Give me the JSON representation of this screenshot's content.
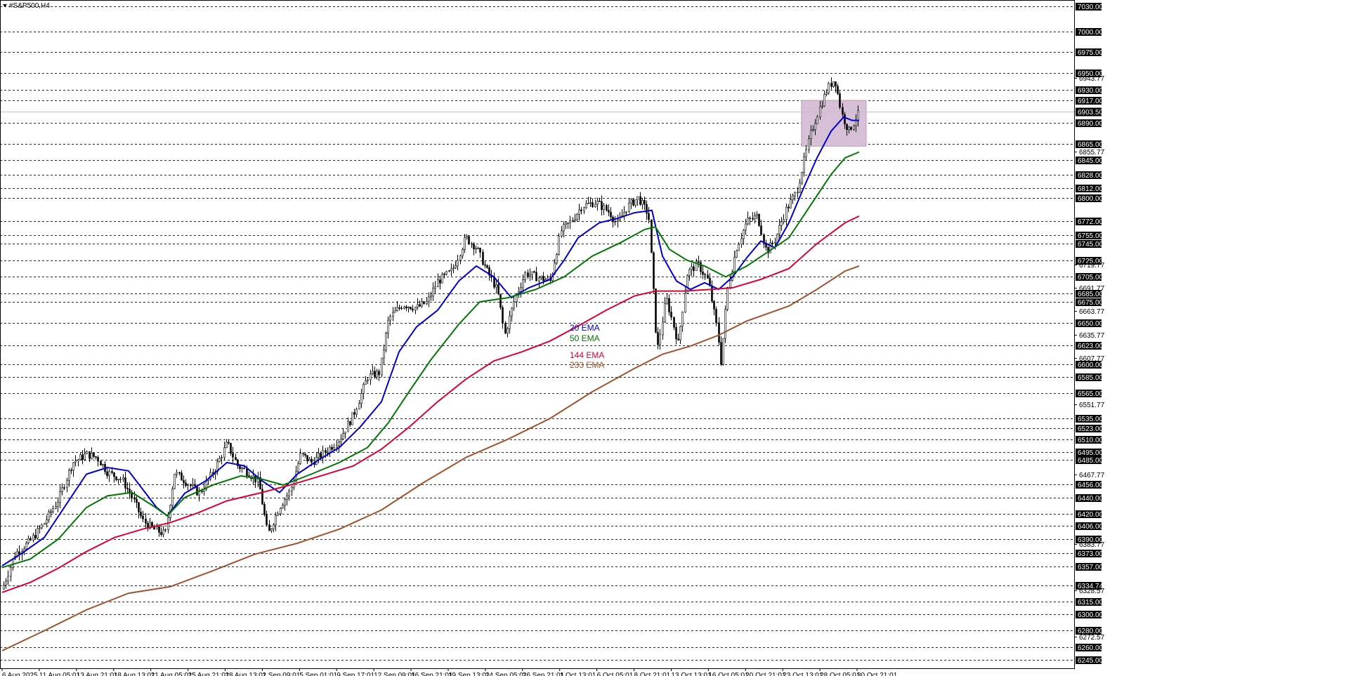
{
  "window": {
    "symbol_label": "#S&P500,H4",
    "dropdown_icon": "triangle-down-icon"
  },
  "chart_data": {
    "type": "line",
    "title": "#S&P500,H4",
    "xlabel": "",
    "ylabel": "",
    "ylim": [
      6245,
      7030
    ],
    "grid": false,
    "legend_placement": "center",
    "current_price": "6903.50",
    "price_levels": [
      {
        "value": 7030,
        "label": "7030.00"
      },
      {
        "value": 7000,
        "label": "7000.00"
      },
      {
        "value": 6975,
        "label": "6975.00"
      },
      {
        "value": 6950,
        "label": "6950.00"
      },
      {
        "value": 6930,
        "label": "6930.00"
      },
      {
        "value": 6917,
        "label": "6917.00"
      },
      {
        "value": 6890,
        "label": "6890.00"
      },
      {
        "value": 6865,
        "label": "6865.00"
      },
      {
        "value": 6845,
        "label": "6845.00"
      },
      {
        "value": 6828,
        "label": "6828.00"
      },
      {
        "value": 6812,
        "label": "6812.00"
      },
      {
        "value": 6800,
        "label": "6800.00"
      },
      {
        "value": 6772,
        "label": "6772.00"
      },
      {
        "value": 6755,
        "label": "6755.00"
      },
      {
        "value": 6745,
        "label": "6745.00"
      },
      {
        "value": 6725,
        "label": "6725.00"
      },
      {
        "value": 6705,
        "label": "6705.00"
      },
      {
        "value": 6685,
        "label": "6685.00"
      },
      {
        "value": 6675,
        "label": "6675.00"
      },
      {
        "value": 6650,
        "label": "6650.00"
      },
      {
        "value": 6623,
        "label": "6623.00"
      },
      {
        "value": 6600,
        "label": "6600.00"
      },
      {
        "value": 6585,
        "label": "6585.00"
      },
      {
        "value": 6565,
        "label": "6565.00"
      },
      {
        "value": 6535,
        "label": "6535.00"
      },
      {
        "value": 6523,
        "label": "6523.00"
      },
      {
        "value": 6510,
        "label": "6510.00"
      },
      {
        "value": 6495,
        "label": "6495.00"
      },
      {
        "value": 6485,
        "label": "6485.00"
      },
      {
        "value": 6456,
        "label": "6456.00"
      },
      {
        "value": 6440,
        "label": "6440.00"
      },
      {
        "value": 6420,
        "label": "6420.00"
      },
      {
        "value": 6406,
        "label": "6406.00"
      },
      {
        "value": 6390,
        "label": "6390.00"
      },
      {
        "value": 6373,
        "label": "6373.00"
      },
      {
        "value": 6357,
        "label": "6357.00"
      },
      {
        "value": 6334.74,
        "label": "6334.74"
      },
      {
        "value": 6315,
        "label": "6315.00"
      },
      {
        "value": 6300,
        "label": "6300.00"
      },
      {
        "value": 6280,
        "label": "6280.00"
      },
      {
        "value": 6260,
        "label": "6260.00"
      },
      {
        "value": 6245,
        "label": "6245.00"
      }
    ],
    "scale_ticks": [
      {
        "value": 6943.77,
        "label": "6943.77"
      },
      {
        "value": 6855.77,
        "label": "6855.77"
      },
      {
        "value": 6719.77,
        "label": "6719.77"
      },
      {
        "value": 6691.77,
        "label": "6691.77"
      },
      {
        "value": 6663.77,
        "label": "6663.77"
      },
      {
        "value": 6635.77,
        "label": "6635.77"
      },
      {
        "value": 6607.77,
        "label": "6607.77"
      },
      {
        "value": 6551.77,
        "label": "6551.77"
      },
      {
        "value": 6467.77,
        "label": "6467.77"
      },
      {
        "value": 6383.77,
        "label": "6383.77"
      },
      {
        "value": 6328.57,
        "label": "6328.57"
      },
      {
        "value": 6272.57,
        "label": "6272.57"
      }
    ],
    "x_labels": [
      "6 Aug 2025",
      "11 Aug 05:01",
      "13 Aug 21:01",
      "18 Aug 13:01",
      "21 Aug 05:01",
      "25 Aug 21:01",
      "28 Aug 13:01",
      "2 Sep 09:01",
      "5 Sep 01:01",
      "9 Sep 17:01",
      "12 Sep 09:01",
      "16 Sep 21:01",
      "19 Sep 13:01",
      "24 Sep 05:01",
      "26 Sep 21:01",
      "1 Oct 13:01",
      "6 Oct 05:01",
      "8 Oct 21:01",
      "13 Oct 13:01",
      "16 Oct 05:01",
      "20 Oct 21:01",
      "23 Oct 13:01",
      "28 Oct 05:01",
      "30 Oct 21:01"
    ],
    "close_series": [
      {
        "x": 0,
        "y": 6330
      },
      {
        "x": 18,
        "y": 6372
      },
      {
        "x": 40,
        "y": 6388
      },
      {
        "x": 60,
        "y": 6410
      },
      {
        "x": 80,
        "y": 6438
      },
      {
        "x": 100,
        "y": 6482
      },
      {
        "x": 120,
        "y": 6492
      },
      {
        "x": 135,
        "y": 6488
      },
      {
        "x": 150,
        "y": 6470
      },
      {
        "x": 170,
        "y": 6462
      },
      {
        "x": 185,
        "y": 6440
      },
      {
        "x": 200,
        "y": 6412
      },
      {
        "x": 215,
        "y": 6402
      },
      {
        "x": 232,
        "y": 6396
      },
      {
        "x": 245,
        "y": 6470
      },
      {
        "x": 260,
        "y": 6460
      },
      {
        "x": 280,
        "y": 6445
      },
      {
        "x": 300,
        "y": 6470
      },
      {
        "x": 320,
        "y": 6505
      },
      {
        "x": 335,
        "y": 6478
      },
      {
        "x": 350,
        "y": 6470
      },
      {
        "x": 365,
        "y": 6458
      },
      {
        "x": 378,
        "y": 6395
      },
      {
        "x": 395,
        "y": 6430
      },
      {
        "x": 410,
        "y": 6448
      },
      {
        "x": 425,
        "y": 6492
      },
      {
        "x": 440,
        "y": 6482
      },
      {
        "x": 460,
        "y": 6495
      },
      {
        "x": 480,
        "y": 6510
      },
      {
        "x": 500,
        "y": 6540
      },
      {
        "x": 520,
        "y": 6585
      },
      {
        "x": 537,
        "y": 6590
      },
      {
        "x": 550,
        "y": 6655
      },
      {
        "x": 570,
        "y": 6672
      },
      {
        "x": 590,
        "y": 6668
      },
      {
        "x": 605,
        "y": 6675
      },
      {
        "x": 620,
        "y": 6700
      },
      {
        "x": 640,
        "y": 6712
      },
      {
        "x": 660,
        "y": 6752
      },
      {
        "x": 675,
        "y": 6740
      },
      {
        "x": 690,
        "y": 6712
      },
      {
        "x": 705,
        "y": 6688
      },
      {
        "x": 715,
        "y": 6635
      },
      {
        "x": 730,
        "y": 6680
      },
      {
        "x": 745,
        "y": 6710
      },
      {
        "x": 760,
        "y": 6705
      },
      {
        "x": 780,
        "y": 6700
      },
      {
        "x": 795,
        "y": 6760
      },
      {
        "x": 810,
        "y": 6772
      },
      {
        "x": 825,
        "y": 6790
      },
      {
        "x": 845,
        "y": 6795
      },
      {
        "x": 865,
        "y": 6782
      },
      {
        "x": 875,
        "y": 6768
      },
      {
        "x": 890,
        "y": 6790
      },
      {
        "x": 905,
        "y": 6800
      },
      {
        "x": 920,
        "y": 6780
      },
      {
        "x": 932,
        "y": 6615
      },
      {
        "x": 945,
        "y": 6680
      },
      {
        "x": 962,
        "y": 6625
      },
      {
        "x": 975,
        "y": 6710
      },
      {
        "x": 990,
        "y": 6720
      },
      {
        "x": 1005,
        "y": 6700
      },
      {
        "x": 1018,
        "y": 6640
      },
      {
        "x": 1023,
        "y": 6602
      },
      {
        "x": 1032,
        "y": 6690
      },
      {
        "x": 1045,
        "y": 6740
      },
      {
        "x": 1060,
        "y": 6772
      },
      {
        "x": 1075,
        "y": 6778
      },
      {
        "x": 1088,
        "y": 6735
      },
      {
        "x": 1100,
        "y": 6750
      },
      {
        "x": 1115,
        "y": 6785
      },
      {
        "x": 1130,
        "y": 6806
      },
      {
        "x": 1140,
        "y": 6840
      },
      {
        "x": 1150,
        "y": 6875
      },
      {
        "x": 1162,
        "y": 6905
      },
      {
        "x": 1175,
        "y": 6932
      },
      {
        "x": 1185,
        "y": 6943
      },
      {
        "x": 1195,
        "y": 6900
      },
      {
        "x": 1205,
        "y": 6880
      },
      {
        "x": 1220,
        "y": 6903
      }
    ],
    "series": [
      {
        "name": "20 EMA",
        "color": "#0000cc",
        "points": [
          {
            "x": 0,
            "y": 6358
          },
          {
            "x": 30,
            "y": 6374
          },
          {
            "x": 60,
            "y": 6392
          },
          {
            "x": 90,
            "y": 6430
          },
          {
            "x": 120,
            "y": 6468
          },
          {
            "x": 150,
            "y": 6476
          },
          {
            "x": 180,
            "y": 6472
          },
          {
            "x": 200,
            "y": 6450
          },
          {
            "x": 220,
            "y": 6428
          },
          {
            "x": 235,
            "y": 6418
          },
          {
            "x": 260,
            "y": 6445
          },
          {
            "x": 290,
            "y": 6460
          },
          {
            "x": 320,
            "y": 6482
          },
          {
            "x": 345,
            "y": 6478
          },
          {
            "x": 370,
            "y": 6460
          },
          {
            "x": 395,
            "y": 6446
          },
          {
            "x": 420,
            "y": 6468
          },
          {
            "x": 450,
            "y": 6485
          },
          {
            "x": 480,
            "y": 6500
          },
          {
            "x": 510,
            "y": 6525
          },
          {
            "x": 540,
            "y": 6555
          },
          {
            "x": 565,
            "y": 6615
          },
          {
            "x": 590,
            "y": 6645
          },
          {
            "x": 620,
            "y": 6665
          },
          {
            "x": 650,
            "y": 6700
          },
          {
            "x": 675,
            "y": 6718
          },
          {
            "x": 700,
            "y": 6705
          },
          {
            "x": 725,
            "y": 6680
          },
          {
            "x": 750,
            "y": 6692
          },
          {
            "x": 780,
            "y": 6702
          },
          {
            "x": 800,
            "y": 6725
          },
          {
            "x": 820,
            "y": 6752
          },
          {
            "x": 850,
            "y": 6770
          },
          {
            "x": 875,
            "y": 6775
          },
          {
            "x": 900,
            "y": 6782
          },
          {
            "x": 925,
            "y": 6785
          },
          {
            "x": 940,
            "y": 6730
          },
          {
            "x": 960,
            "y": 6700
          },
          {
            "x": 980,
            "y": 6690
          },
          {
            "x": 1000,
            "y": 6698
          },
          {
            "x": 1020,
            "y": 6690
          },
          {
            "x": 1040,
            "y": 6705
          },
          {
            "x": 1060,
            "y": 6728
          },
          {
            "x": 1080,
            "y": 6748
          },
          {
            "x": 1100,
            "y": 6740
          },
          {
            "x": 1120,
            "y": 6770
          },
          {
            "x": 1140,
            "y": 6810
          },
          {
            "x": 1160,
            "y": 6848
          },
          {
            "x": 1180,
            "y": 6880
          },
          {
            "x": 1198,
            "y": 6897
          },
          {
            "x": 1210,
            "y": 6893
          },
          {
            "x": 1220,
            "y": 6893
          }
        ]
      },
      {
        "name": "50 EMA",
        "color": "#007700",
        "points": [
          {
            "x": 0,
            "y": 6356
          },
          {
            "x": 40,
            "y": 6366
          },
          {
            "x": 80,
            "y": 6390
          },
          {
            "x": 120,
            "y": 6428
          },
          {
            "x": 150,
            "y": 6442
          },
          {
            "x": 185,
            "y": 6446
          },
          {
            "x": 215,
            "y": 6430
          },
          {
            "x": 235,
            "y": 6418
          },
          {
            "x": 260,
            "y": 6440
          },
          {
            "x": 300,
            "y": 6455
          },
          {
            "x": 340,
            "y": 6466
          },
          {
            "x": 370,
            "y": 6462
          },
          {
            "x": 400,
            "y": 6455
          },
          {
            "x": 440,
            "y": 6468
          },
          {
            "x": 480,
            "y": 6482
          },
          {
            "x": 520,
            "y": 6500
          },
          {
            "x": 550,
            "y": 6530
          },
          {
            "x": 580,
            "y": 6568
          },
          {
            "x": 610,
            "y": 6605
          },
          {
            "x": 650,
            "y": 6648
          },
          {
            "x": 680,
            "y": 6675
          },
          {
            "x": 720,
            "y": 6680
          },
          {
            "x": 760,
            "y": 6690
          },
          {
            "x": 800,
            "y": 6705
          },
          {
            "x": 840,
            "y": 6730
          },
          {
            "x": 880,
            "y": 6746
          },
          {
            "x": 915,
            "y": 6762
          },
          {
            "x": 930,
            "y": 6765
          },
          {
            "x": 950,
            "y": 6738
          },
          {
            "x": 975,
            "y": 6725
          },
          {
            "x": 1000,
            "y": 6718
          },
          {
            "x": 1030,
            "y": 6705
          },
          {
            "x": 1060,
            "y": 6718
          },
          {
            "x": 1090,
            "y": 6735
          },
          {
            "x": 1120,
            "y": 6752
          },
          {
            "x": 1150,
            "y": 6790
          },
          {
            "x": 1180,
            "y": 6828
          },
          {
            "x": 1200,
            "y": 6848
          },
          {
            "x": 1220,
            "y": 6855
          }
        ]
      },
      {
        "name": "144 EMA",
        "color": "#dd0033",
        "points": [
          {
            "x": 0,
            "y": 6326
          },
          {
            "x": 40,
            "y": 6338
          },
          {
            "x": 80,
            "y": 6355
          },
          {
            "x": 120,
            "y": 6375
          },
          {
            "x": 160,
            "y": 6392
          },
          {
            "x": 200,
            "y": 6402
          },
          {
            "x": 240,
            "y": 6410
          },
          {
            "x": 280,
            "y": 6422
          },
          {
            "x": 320,
            "y": 6436
          },
          {
            "x": 370,
            "y": 6446
          },
          {
            "x": 410,
            "y": 6455
          },
          {
            "x": 450,
            "y": 6465
          },
          {
            "x": 500,
            "y": 6478
          },
          {
            "x": 540,
            "y": 6498
          },
          {
            "x": 580,
            "y": 6525
          },
          {
            "x": 620,
            "y": 6555
          },
          {
            "x": 660,
            "y": 6582
          },
          {
            "x": 700,
            "y": 6604
          },
          {
            "x": 740,
            "y": 6615
          },
          {
            "x": 780,
            "y": 6628
          },
          {
            "x": 820,
            "y": 6646
          },
          {
            "x": 860,
            "y": 6665
          },
          {
            "x": 900,
            "y": 6682
          },
          {
            "x": 930,
            "y": 6688
          },
          {
            "x": 970,
            "y": 6688
          },
          {
            "x": 1010,
            "y": 6690
          },
          {
            "x": 1040,
            "y": 6692
          },
          {
            "x": 1080,
            "y": 6702
          },
          {
            "x": 1120,
            "y": 6715
          },
          {
            "x": 1160,
            "y": 6745
          },
          {
            "x": 1200,
            "y": 6770
          },
          {
            "x": 1220,
            "y": 6778
          }
        ]
      },
      {
        "name": "233 EMA",
        "color": "#a0522d",
        "points": [
          {
            "x": 0,
            "y": 6256
          },
          {
            "x": 60,
            "y": 6280
          },
          {
            "x": 120,
            "y": 6305
          },
          {
            "x": 180,
            "y": 6325
          },
          {
            "x": 240,
            "y": 6333
          },
          {
            "x": 300,
            "y": 6352
          },
          {
            "x": 360,
            "y": 6372
          },
          {
            "x": 420,
            "y": 6385
          },
          {
            "x": 480,
            "y": 6402
          },
          {
            "x": 540,
            "y": 6425
          },
          {
            "x": 600,
            "y": 6458
          },
          {
            "x": 660,
            "y": 6488
          },
          {
            "x": 720,
            "y": 6510
          },
          {
            "x": 780,
            "y": 6535
          },
          {
            "x": 840,
            "y": 6567
          },
          {
            "x": 900,
            "y": 6595
          },
          {
            "x": 940,
            "y": 6612
          },
          {
            "x": 980,
            "y": 6622
          },
          {
            "x": 1020,
            "y": 6635
          },
          {
            "x": 1060,
            "y": 6652
          },
          {
            "x": 1120,
            "y": 6670
          },
          {
            "x": 1160,
            "y": 6690
          },
          {
            "x": 1200,
            "y": 6712
          },
          {
            "x": 1220,
            "y": 6718
          }
        ]
      }
    ],
    "highlight_zone": {
      "x_start": 1138,
      "x_end": 1230,
      "y_high": 6917,
      "y_low": 6862,
      "color": "#d8bfd8"
    },
    "legend_entries": [
      {
        "label": "20 EMA",
        "color": "#0000cc"
      },
      {
        "label": "50 EMA",
        "color": "#007700"
      },
      {
        "label": "144 EMA",
        "color": "#dd0033"
      },
      {
        "label": "233 EMA",
        "color": "#a0522d"
      }
    ]
  }
}
